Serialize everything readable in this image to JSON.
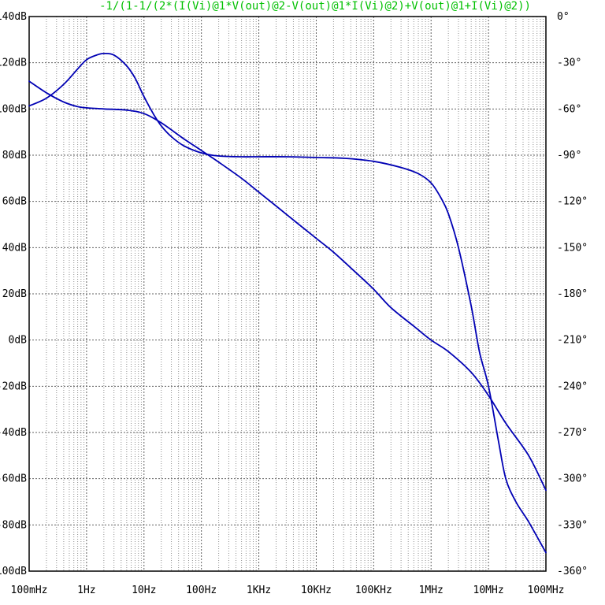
{
  "chart_data": {
    "type": "line",
    "title": "-1/(1-1/(2*(I(Vi)@1*V(out)@2-V(out)@1*I(Vi)@2)+V(out)@1+I(Vi)@2))",
    "x_scale": "log",
    "xlim": [
      0.1,
      100000000
    ],
    "x_ticks": [
      {
        "value": 0.1,
        "label": "100mHz"
      },
      {
        "value": 1,
        "label": "1Hz"
      },
      {
        "value": 10,
        "label": "10Hz"
      },
      {
        "value": 100,
        "label": "100Hz"
      },
      {
        "value": 1000,
        "label": "1KHz"
      },
      {
        "value": 10000,
        "label": "10KHz"
      },
      {
        "value": 100000,
        "label": "100KHz"
      },
      {
        "value": 1000000,
        "label": "1MHz"
      },
      {
        "value": 10000000,
        "label": "10MHz"
      },
      {
        "value": 100000000,
        "label": "100MHz"
      }
    ],
    "ylim_left": [
      -100,
      140
    ],
    "y_ticks_left": [
      {
        "value": 140,
        "label": "140dB"
      },
      {
        "value": 120,
        "label": "120dB"
      },
      {
        "value": 100,
        "label": "100dB"
      },
      {
        "value": 80,
        "label": "80dB"
      },
      {
        "value": 60,
        "label": "60dB"
      },
      {
        "value": 40,
        "label": "40dB"
      },
      {
        "value": 20,
        "label": "20dB"
      },
      {
        "value": 0,
        "label": "0dB"
      },
      {
        "value": -20,
        "label": "-20dB"
      },
      {
        "value": -40,
        "label": "-40dB"
      },
      {
        "value": -60,
        "label": "-60dB"
      },
      {
        "value": -80,
        "label": "-80dB"
      },
      {
        "value": -100,
        "label": "-100dB"
      }
    ],
    "ylim_right": [
      -360,
      0
    ],
    "y_ticks_right": [
      {
        "value": 0,
        "label": "0°"
      },
      {
        "value": -30,
        "label": "-30°"
      },
      {
        "value": -60,
        "label": "-60°"
      },
      {
        "value": -90,
        "label": "-90°"
      },
      {
        "value": -120,
        "label": "-120°"
      },
      {
        "value": -150,
        "label": "-150°"
      },
      {
        "value": -180,
        "label": "-180°"
      },
      {
        "value": -210,
        "label": "-210°"
      },
      {
        "value": -240,
        "label": "-240°"
      },
      {
        "value": -270,
        "label": "-270°"
      },
      {
        "value": -300,
        "label": "-300°"
      },
      {
        "value": -330,
        "label": "-330°"
      },
      {
        "value": -360,
        "label": "-360°"
      }
    ],
    "grid": true,
    "series": [
      {
        "axis": "left",
        "color": "#0000b4",
        "x": [
          0.1,
          0.2,
          0.4,
          0.7,
          1,
          2,
          5,
          10,
          20,
          50,
          100,
          200,
          500,
          1000,
          2000,
          5000,
          10000,
          20000,
          50000,
          100000,
          200000,
          500000,
          1000000,
          2000000,
          5000000,
          10000000,
          20000000,
          50000000,
          100000000
        ],
        "values": [
          112,
          107,
          103,
          101,
          100.5,
          100,
          99.5,
          98,
          94,
          87,
          82,
          77,
          70,
          64,
          58,
          50,
          44,
          38,
          29,
          22,
          14,
          6,
          0,
          -5,
          -14,
          -24,
          -36,
          -50,
          -65
        ]
      },
      {
        "axis": "right",
        "color": "#0000b4",
        "x": [
          0.1,
          0.2,
          0.4,
          0.7,
          1,
          1.5,
          2,
          3,
          5,
          7,
          10,
          15,
          20,
          30,
          50,
          100,
          200,
          500,
          1000,
          3000,
          10000,
          30000,
          100000,
          300000,
          600000,
          1000000,
          1500000,
          2000000,
          3000000,
          5000000,
          7000000,
          10000000,
          15000000,
          20000000,
          30000000,
          50000000,
          100000000
        ],
        "values": [
          -58,
          -53,
          -44,
          -34,
          -28,
          -25,
          -24,
          -25,
          -32,
          -40,
          -52,
          -64,
          -71,
          -78,
          -84,
          -88.5,
          -90.5,
          -91,
          -91,
          -91,
          -91.5,
          -92,
          -94,
          -98,
          -102,
          -108,
          -118,
          -128,
          -150,
          -188,
          -218,
          -240,
          -276,
          -300,
          -315,
          -328,
          -348
        ]
      }
    ]
  }
}
